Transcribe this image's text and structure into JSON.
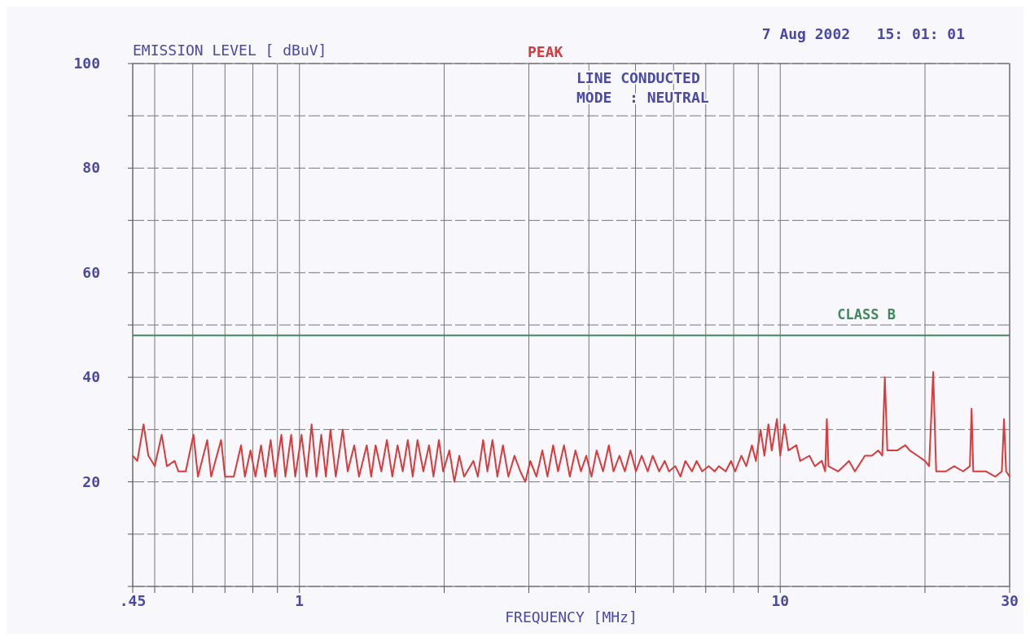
{
  "chart_data": {
    "type": "line",
    "ylabel": "EMISSION LEVEL [ dBuV]",
    "xlabel": "FREQUENCY  [MHz]",
    "annotations": [
      "PEAK",
      "7 Aug 2002   15: 01: 01",
      "LINE CONDUCTED",
      "MODE  : NEUTRAL"
    ],
    "log": "x",
    "grid": true,
    "xlim": [
      0.45,
      30
    ],
    "xticks": [
      {
        "value": 0.45,
        "label": ".45"
      },
      {
        "value": 0.5,
        "label": null
      },
      {
        "value": 0.6,
        "label": null
      },
      {
        "value": 0.7,
        "label": null
      },
      {
        "value": 0.8,
        "label": null
      },
      {
        "value": 0.9,
        "label": null
      },
      1,
      {
        "value": 2,
        "label": null
      },
      {
        "value": 3,
        "label": null
      },
      {
        "value": 4,
        "label": null
      },
      {
        "value": 5,
        "label": null
      },
      {
        "value": 6,
        "label": null
      },
      {
        "value": 7,
        "label": null
      },
      {
        "value": 8,
        "label": null
      },
      {
        "value": 9,
        "label": null
      },
      10,
      {
        "value": 20,
        "label": null
      },
      30
    ],
    "ylim": [
      0,
      100
    ],
    "yticks": [
      {
        "value": 0,
        "label": null
      },
      {
        "value": 10,
        "label": null
      },
      20,
      {
        "value": 30,
        "label": null
      },
      40,
      {
        "value": 50,
        "label": null
      },
      60,
      {
        "value": 70,
        "label": null
      },
      80,
      {
        "value": 90,
        "label": null
      },
      100
    ],
    "ref_lines": [
      {
        "axis": "y",
        "value": 48,
        "label": "CLASS B",
        "color": "#3f8a5c"
      }
    ],
    "series": [
      {
        "color": "#d93a3c",
        "x": [
          0.45,
          0.46,
          0.474,
          0.485,
          0.5,
          0.517,
          0.53,
          0.55,
          0.56,
          0.58,
          0.602,
          0.615,
          0.643,
          0.655,
          0.687,
          0.7,
          0.73,
          0.756,
          0.77,
          0.791,
          0.81,
          0.832,
          0.85,
          0.871,
          0.89,
          0.917,
          0.935,
          0.961,
          0.98,
          1.01,
          1.035,
          1.06,
          1.085,
          1.11,
          1.135,
          1.16,
          1.19,
          1.23,
          1.26,
          1.3,
          1.33,
          1.38,
          1.41,
          1.44,
          1.48,
          1.52,
          1.56,
          1.6,
          1.64,
          1.68,
          1.72,
          1.76,
          1.81,
          1.86,
          1.9,
          1.95,
          1.99,
          2.05,
          2.1,
          2.15,
          2.2,
          2.3,
          2.35,
          2.41,
          2.46,
          2.52,
          2.58,
          2.65,
          2.72,
          2.8,
          2.88,
          2.95,
          3.02,
          3.11,
          3.2,
          3.28,
          3.37,
          3.45,
          3.55,
          3.65,
          3.75,
          3.85,
          3.95,
          4.05,
          4.15,
          4.28,
          4.4,
          4.5,
          4.63,
          4.75,
          4.88,
          5.01,
          5.15,
          5.3,
          5.43,
          5.6,
          5.75,
          5.87,
          6.05,
          6.2,
          6.35,
          6.55,
          6.7,
          6.88,
          7.1,
          7.3,
          7.45,
          7.7,
          7.9,
          8.06,
          8.3,
          8.5,
          8.73,
          8.9,
          9.1,
          9.27,
          9.45,
          9.6,
          9.84,
          10.0,
          10.2,
          10.4,
          10.8,
          11.0,
          11.5,
          11.8,
          12.2,
          12.4,
          12.5,
          12.6,
          13.2,
          13.9,
          14.3,
          15.0,
          15.5,
          16.0,
          16.3,
          16.5,
          16.7,
          17.5,
          18.2,
          18.6,
          19.3,
          20.0,
          20.4,
          20.8,
          21.1,
          22.1,
          23.0,
          24.0,
          24.8,
          25.0,
          25.2,
          26.8,
          28.0,
          28.9,
          29.2,
          29.5,
          30
        ],
        "values": [
          25,
          24,
          31,
          25,
          23,
          29,
          23,
          24,
          22,
          22,
          29,
          21,
          28,
          21,
          28,
          21,
          21,
          27,
          21,
          26,
          21,
          27,
          21,
          28,
          21,
          29,
          21,
          29,
          21,
          29,
          21,
          31,
          21,
          29,
          21,
          30,
          21,
          30,
          22,
          27,
          21,
          27,
          21,
          27,
          22,
          28,
          21,
          27,
          22,
          28,
          21,
          28,
          22,
          27,
          21,
          28,
          22,
          26,
          20,
          25,
          21,
          24,
          21,
          28,
          22,
          28,
          21,
          27,
          21,
          25,
          22,
          20,
          24,
          21,
          26,
          21,
          27,
          22,
          27,
          21,
          26,
          22,
          25,
          21,
          26,
          22,
          27,
          22,
          25,
          22,
          26,
          22,
          25,
          22,
          25,
          22,
          24,
          22,
          23,
          21,
          24,
          22,
          24,
          22,
          23,
          22,
          23,
          22,
          24,
          22,
          25,
          23,
          27,
          24,
          30,
          25,
          31,
          26,
          32,
          25,
          31,
          26,
          27,
          24,
          25,
          23,
          24,
          22,
          32,
          23,
          22,
          24,
          22,
          25,
          25,
          26,
          25,
          40,
          26,
          26,
          27,
          26,
          25,
          24,
          23,
          41,
          22,
          22,
          23,
          22,
          23,
          34,
          22,
          22,
          21,
          22,
          32,
          22,
          21
        ]
      }
    ]
  }
}
